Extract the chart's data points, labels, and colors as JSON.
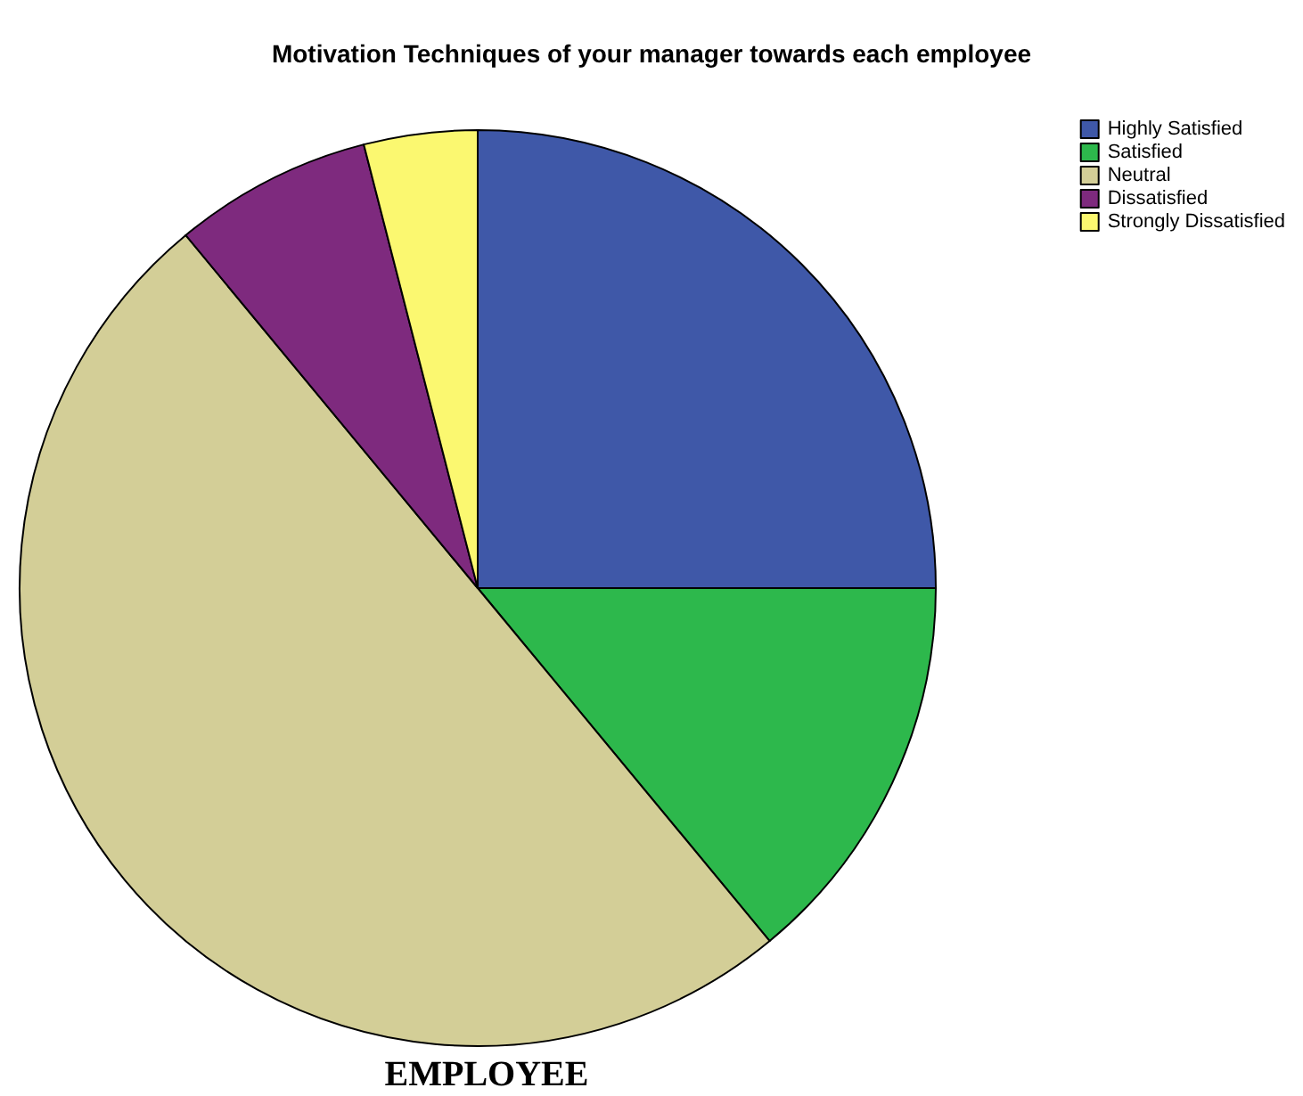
{
  "chart_data": {
    "type": "pie",
    "title": "Motivation Techniques of your manager towards each employee",
    "xlabel": "EMPLOYEE",
    "categories": [
      "Highly Satisfied",
      "Satisfied",
      "Neutral",
      "Dissatisfied",
      "Strongly Dissatisfied"
    ],
    "values": [
      25,
      14,
      50,
      7,
      4
    ],
    "colors": [
      "#3f58a8",
      "#2db84c",
      "#d3ce97",
      "#7e2a7e",
      "#fbf870"
    ],
    "legend": "top right"
  }
}
